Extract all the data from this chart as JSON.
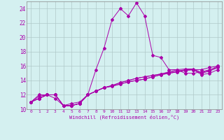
{
  "xlabel": "Windchill (Refroidissement éolien,°C)",
  "background_color": "#d4f0f0",
  "grid_color": "#b0c8c8",
  "line_color": "#aa00aa",
  "xlim": [
    -0.5,
    23.5
  ],
  "ylim": [
    10,
    25
  ],
  "xticks": [
    0,
    1,
    2,
    3,
    4,
    5,
    6,
    7,
    8,
    9,
    10,
    11,
    12,
    13,
    14,
    15,
    16,
    17,
    18,
    19,
    20,
    21,
    22,
    23
  ],
  "yticks": [
    10,
    12,
    14,
    16,
    18,
    20,
    22,
    24
  ],
  "series": [
    [
      11.0,
      12.0,
      12.0,
      11.5,
      10.5,
      10.8,
      11.0,
      12.0,
      15.5,
      18.5,
      22.5,
      24.0,
      23.0,
      24.8,
      23.0,
      17.5,
      17.2,
      15.5,
      15.5,
      15.0,
      15.0,
      15.2,
      15.5,
      15.8
    ],
    [
      11.0,
      11.8,
      12.0,
      12.0,
      10.5,
      10.5,
      10.8,
      12.0,
      12.5,
      13.0,
      13.2,
      13.5,
      13.8,
      14.0,
      14.2,
      14.5,
      14.8,
      15.0,
      15.2,
      15.4,
      15.5,
      15.5,
      15.8,
      16.0
    ],
    [
      11.0,
      11.5,
      12.0,
      12.0,
      10.5,
      10.5,
      10.8,
      12.0,
      12.5,
      13.0,
      13.2,
      13.5,
      13.8,
      14.0,
      14.2,
      14.5,
      14.8,
      15.0,
      15.2,
      15.4,
      15.5,
      14.8,
      15.0,
      15.5
    ],
    [
      11.0,
      11.5,
      12.0,
      12.0,
      10.5,
      10.5,
      10.8,
      12.0,
      12.5,
      13.0,
      13.3,
      13.7,
      14.0,
      14.3,
      14.5,
      14.7,
      14.9,
      15.1,
      15.3,
      15.5,
      15.5,
      15.0,
      15.3,
      15.8
    ],
    [
      11.0,
      11.5,
      12.0,
      12.0,
      10.5,
      10.5,
      10.8,
      12.0,
      12.5,
      13.0,
      13.3,
      13.7,
      14.0,
      14.3,
      14.5,
      14.7,
      14.9,
      15.2,
      15.5,
      15.6,
      15.6,
      15.1,
      15.4,
      16.0
    ]
  ]
}
